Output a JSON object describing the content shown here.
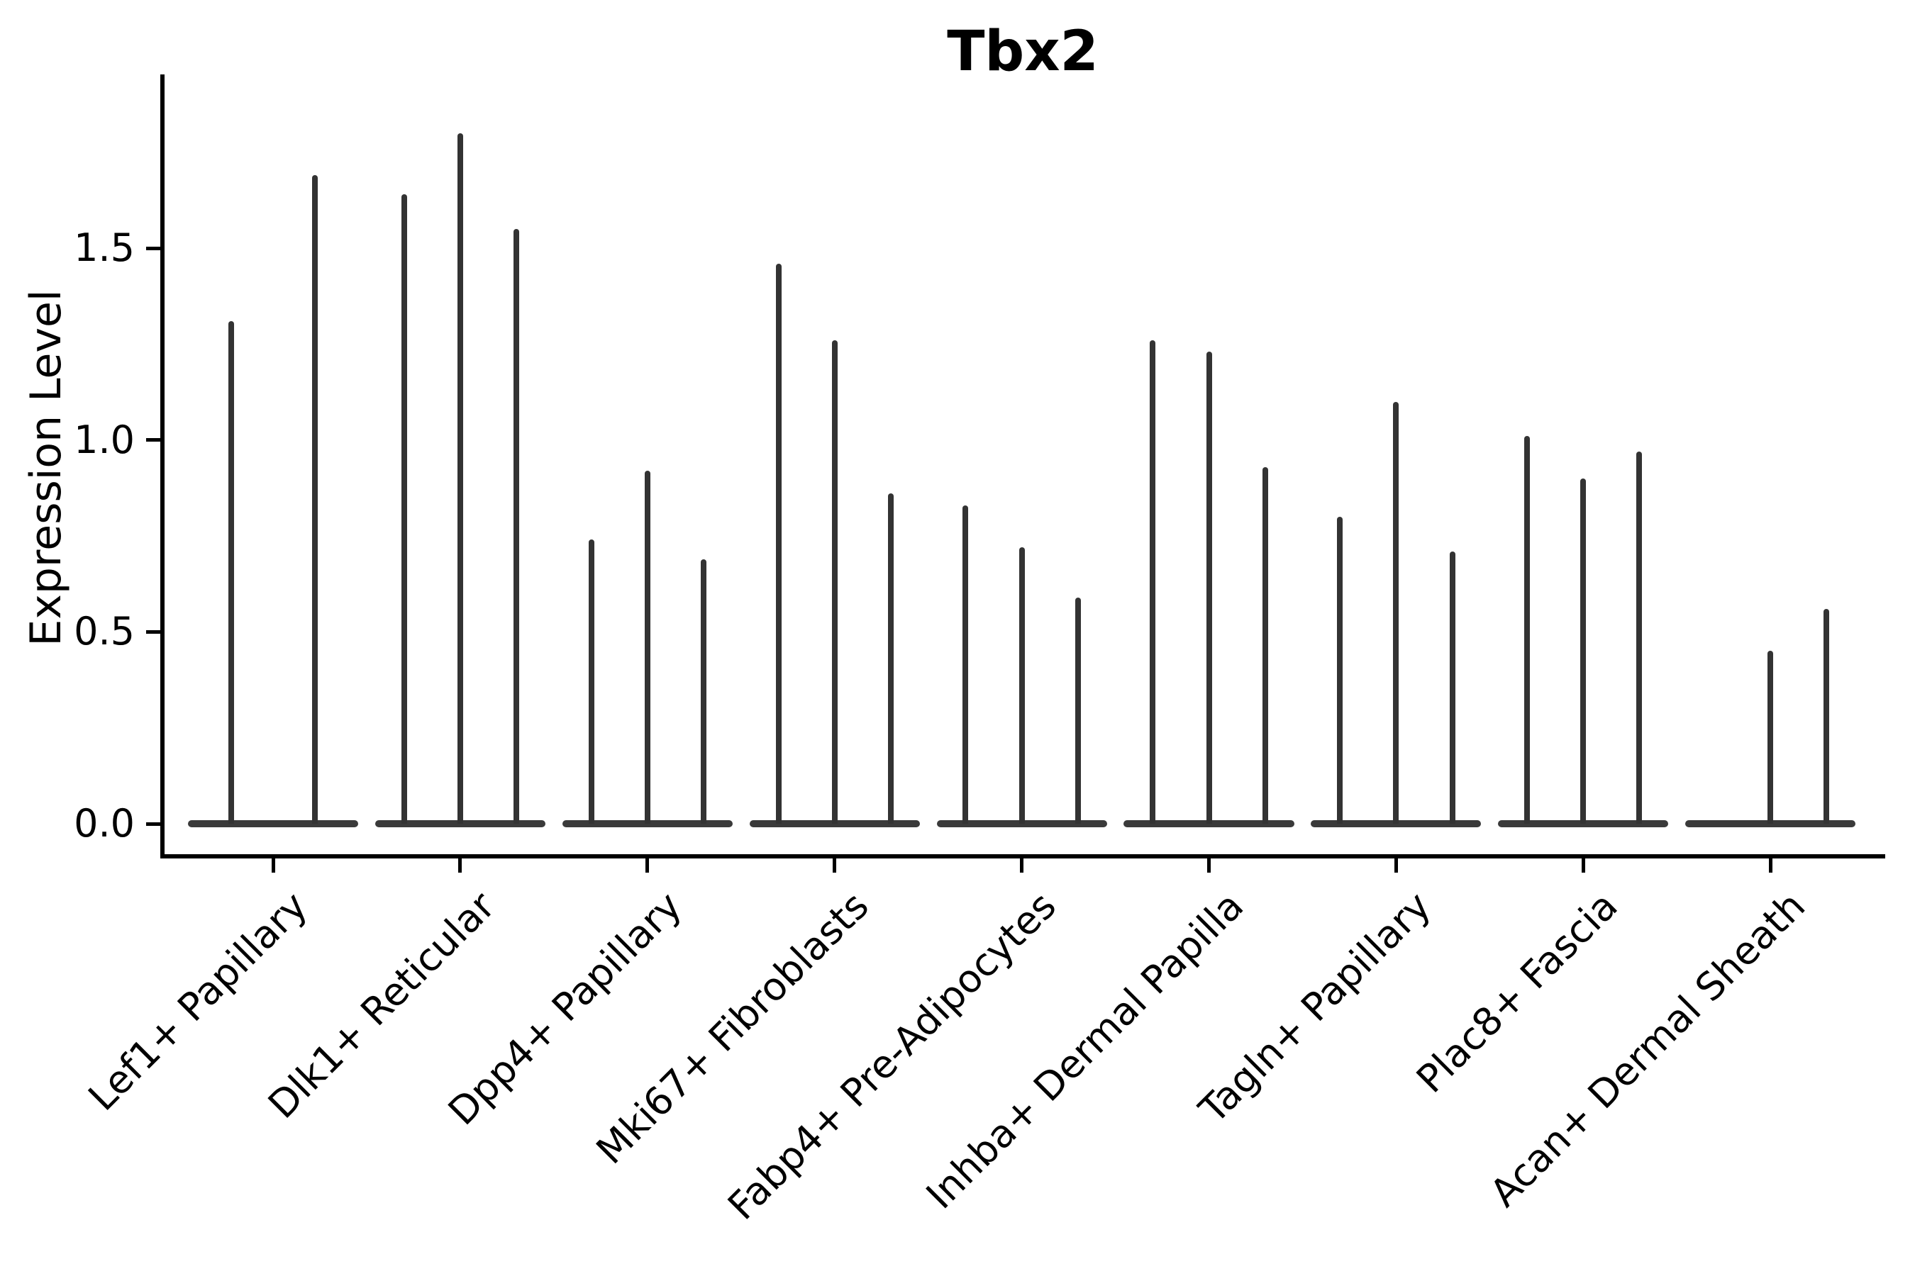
{
  "title": "Tbx2",
  "y_axis": {
    "label": "Expression Level",
    "ticks": [
      {
        "label": "0.0",
        "value": 0.0
      },
      {
        "label": "0.5",
        "value": 0.5
      },
      {
        "label": "1.0",
        "value": 1.0
      },
      {
        "label": "1.5",
        "value": 1.5
      }
    ]
  },
  "chart_data": {
    "type": "violin",
    "title": "Tbx2",
    "ylabel": "Expression Level",
    "xlabel": "",
    "ylim": [
      -0.09,
      1.95
    ],
    "grid": false,
    "legend": "none",
    "description": "Single-cell expression violin plot; each category shows narrow violins that are wide at 0 (baseline bar) with a thin spike up to the maximum expression value.",
    "categories": [
      "Lef1+ Papillary",
      "Dlk1+ Reticular",
      "Dpp4+ Papillary",
      "Mki67+ Fibroblasts",
      "Fabp4+ Pre-Adipocytes",
      "Inhba+ Dermal Papilla",
      "Tagln+ Papillary",
      "Plac8+ Fascia",
      "Acan+ Dermal Sheath"
    ],
    "baseline_value": 0.0,
    "baseline_halfwidth": 0.455,
    "violins": [
      {
        "category": "Lef1+ Papillary",
        "spikes": [
          {
            "offset": -0.225,
            "max": 1.31
          },
          {
            "offset": 0.225,
            "max": 1.69
          }
        ]
      },
      {
        "category": "Dlk1+ Reticular",
        "spikes": [
          {
            "offset": -0.3,
            "max": 1.64
          },
          {
            "offset": 0.0,
            "max": 1.8
          },
          {
            "offset": 0.3,
            "max": 1.55
          }
        ]
      },
      {
        "category": "Dpp4+ Papillary",
        "spikes": [
          {
            "offset": -0.3,
            "max": 0.74
          },
          {
            "offset": 0.0,
            "max": 0.92
          },
          {
            "offset": 0.3,
            "max": 0.69
          }
        ]
      },
      {
        "category": "Mki67+ Fibroblasts",
        "spikes": [
          {
            "offset": -0.3,
            "max": 1.46
          },
          {
            "offset": 0.0,
            "max": 1.26
          },
          {
            "offset": 0.3,
            "max": 0.86
          }
        ]
      },
      {
        "category": "Fabp4+ Pre-Adipocytes",
        "spikes": [
          {
            "offset": -0.3,
            "max": 0.83
          },
          {
            "offset": 0.0,
            "max": 0.72
          },
          {
            "offset": 0.3,
            "max": 0.59
          }
        ]
      },
      {
        "category": "Inhba+ Dermal Papilla",
        "spikes": [
          {
            "offset": -0.3,
            "max": 1.26
          },
          {
            "offset": 0.0,
            "max": 1.23
          },
          {
            "offset": 0.3,
            "max": 0.93
          }
        ]
      },
      {
        "category": "Tagln+ Papillary",
        "spikes": [
          {
            "offset": -0.3,
            "max": 0.8
          },
          {
            "offset": 0.0,
            "max": 1.1
          },
          {
            "offset": 0.3,
            "max": 0.71
          }
        ]
      },
      {
        "category": "Plac8+ Fascia",
        "spikes": [
          {
            "offset": -0.3,
            "max": 1.01
          },
          {
            "offset": 0.0,
            "max": 0.9
          },
          {
            "offset": 0.3,
            "max": 0.97
          }
        ]
      },
      {
        "category": "Acan+ Dermal Sheath",
        "spikes": [
          {
            "offset": -0.3,
            "max": 0.0
          },
          {
            "offset": 0.0,
            "max": 0.45
          },
          {
            "offset": 0.3,
            "max": 0.56
          }
        ]
      }
    ],
    "colors": {
      "violin": "#333333",
      "axis": "#000000",
      "background": "#ffffff"
    }
  }
}
